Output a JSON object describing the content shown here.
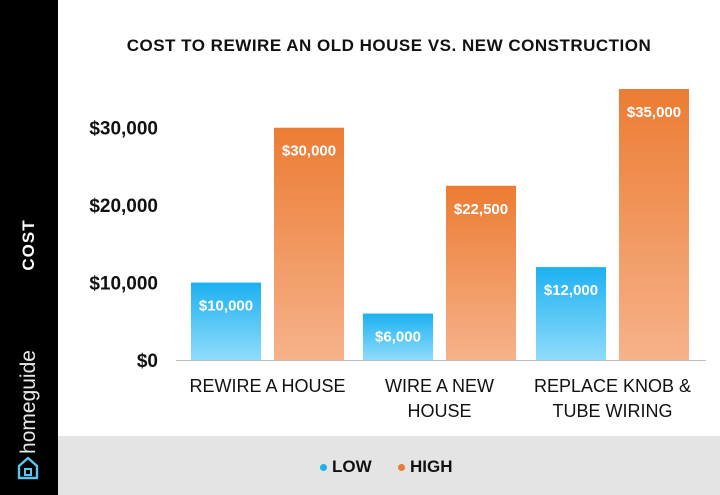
{
  "sidebar": {
    "axis_label": "COST",
    "brand": "homeguide"
  },
  "chart_data": {
    "type": "bar",
    "title": "COST TO REWIRE AN OLD HOUSE VS. NEW CONSTRUCTION",
    "ylabel": "COST",
    "xlabel": "",
    "categories": [
      [
        "REWIRE A HOUSE"
      ],
      [
        "WIRE A NEW",
        "HOUSE"
      ],
      [
        "REPLACE KNOB &",
        "TUBE WIRING"
      ]
    ],
    "series": [
      {
        "name": "LOW",
        "values": [
          10000,
          6000,
          12000
        ],
        "labels": [
          "$10,000",
          "$6,000",
          "$12,000"
        ],
        "color_top": "#1cb1f1",
        "color_bottom": "#8fdcfb"
      },
      {
        "name": "HIGH",
        "values": [
          30000,
          22500,
          35000
        ],
        "labels": [
          "$30,000",
          "$22,500",
          "$35,000"
        ],
        "color_top": "#ec7c33",
        "color_bottom": "#f6b28a"
      }
    ],
    "yticks": [
      {
        "value": 0,
        "label": "$0"
      },
      {
        "value": 10000,
        "label": "$10,000"
      },
      {
        "value": 20000,
        "label": "$20,000"
      },
      {
        "value": 30000,
        "label": "$30,000"
      }
    ],
    "ylim": [
      0,
      35000
    ],
    "grid": false,
    "legend_position": "bottom"
  },
  "legend": {
    "items": [
      {
        "label": "LOW",
        "color": "#1cb1f1"
      },
      {
        "label": "HIGH",
        "color": "#ec7c33"
      }
    ]
  }
}
